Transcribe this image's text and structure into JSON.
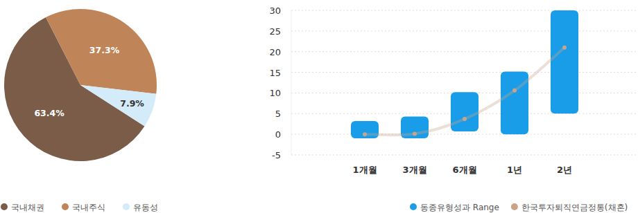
{
  "chart_data": [
    {
      "type": "pie",
      "categories": [
        "국내채권",
        "국내주식",
        "유동성"
      ],
      "values": [
        63.4,
        37.3,
        7.9
      ],
      "value_labels": [
        "63.4%",
        "37.3%",
        "7.9%"
      ],
      "colors": [
        "#7a5c48",
        "#bf8458",
        "#d4ebf9"
      ],
      "data_labels": true,
      "legend": "bottom"
    },
    {
      "type": "range",
      "categories": [
        "1개월",
        "3개월",
        "6개월",
        "1년",
        "2년"
      ],
      "series": [
        {
          "name": "동종유형성과 Range",
          "type": "range",
          "color": "#1a9de8",
          "low": [
            -1.0,
            -1.0,
            0.7,
            0.0,
            5.0
          ],
          "high": [
            3.2,
            4.3,
            10.2,
            15.2,
            30.0
          ]
        },
        {
          "name": "한국투자퇴직연금정통(채혼)",
          "type": "line",
          "color": "#c9a48a",
          "marker": "circle",
          "values": [
            0.0,
            0.1,
            3.7,
            10.6,
            21.0
          ]
        }
      ],
      "ylim": [
        -5,
        30
      ],
      "yticks": [
        -5,
        0,
        5,
        10,
        15,
        20,
        25,
        30
      ],
      "grid": true,
      "legend": "bottom"
    }
  ]
}
